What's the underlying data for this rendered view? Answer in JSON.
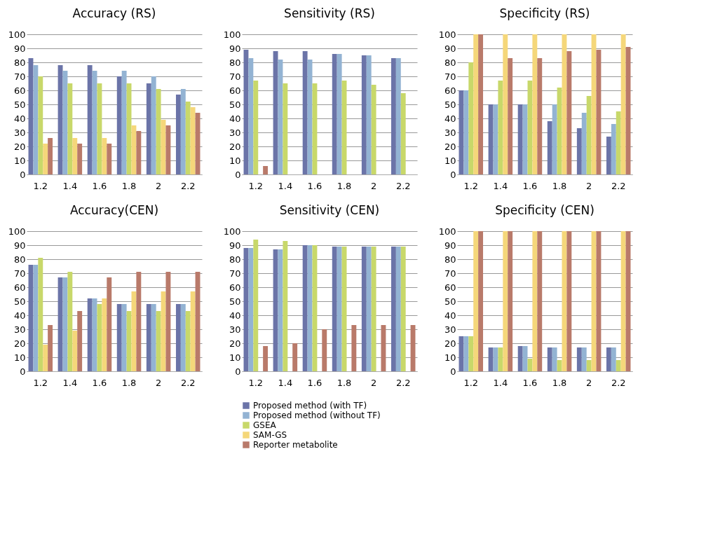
{
  "chart_data": [
    {
      "type": "bar",
      "title": "Accuracy (RS)",
      "categories": [
        "1.2",
        "1.4",
        "1.6",
        "1.8",
        "2",
        "2.2"
      ],
      "ylim": [
        0,
        100
      ],
      "yticks": [
        0,
        10,
        20,
        30,
        40,
        50,
        60,
        70,
        80,
        90,
        100
      ],
      "grid": "y",
      "series": [
        {
          "color": "#6b74a8",
          "values": [
            83,
            78,
            78,
            70,
            65,
            57
          ]
        },
        {
          "color": "#93b3d3",
          "values": [
            78,
            74,
            74,
            74,
            70,
            61
          ]
        },
        {
          "color": "#c8d86a",
          "values": [
            70,
            65,
            65,
            65,
            61,
            52
          ]
        },
        {
          "color": "#f5d77a",
          "values": [
            22,
            26,
            26,
            35,
            39,
            48
          ]
        },
        {
          "color": "#b97a6a",
          "values": [
            26,
            22,
            22,
            31,
            35,
            44
          ]
        }
      ]
    },
    {
      "type": "bar",
      "title": "Sensitivity (RS)",
      "categories": [
        "1.2",
        "1.4",
        "1.6",
        "1.8",
        "2",
        "2.2"
      ],
      "ylim": [
        0,
        100
      ],
      "yticks": [
        0,
        10,
        20,
        30,
        40,
        50,
        60,
        70,
        80,
        90,
        100
      ],
      "grid": "y",
      "series": [
        {
          "color": "#6b74a8",
          "values": [
            89,
            88,
            88,
            86,
            85,
            83
          ]
        },
        {
          "color": "#93b3d3",
          "values": [
            83,
            82,
            82,
            86,
            85,
            83
          ]
        },
        {
          "color": "#c8d86a",
          "values": [
            67,
            65,
            65,
            67,
            64,
            58
          ]
        },
        {
          "color": "#f5d77a",
          "values": [
            0,
            0,
            0,
            0,
            0,
            0
          ]
        },
        {
          "color": "#b97a6a",
          "values": [
            6,
            0,
            0,
            0,
            0,
            0
          ]
        }
      ]
    },
    {
      "type": "bar",
      "title": "Specificity (RS)",
      "categories": [
        "1.2",
        "1.4",
        "1.6",
        "1.8",
        "2",
        "2.2"
      ],
      "ylim": [
        0,
        100
      ],
      "yticks": [
        0,
        10,
        20,
        30,
        40,
        50,
        60,
        70,
        80,
        90,
        100
      ],
      "grid": "y",
      "series": [
        {
          "color": "#6b74a8",
          "values": [
            60,
            50,
            50,
            38,
            33,
            27
          ]
        },
        {
          "color": "#93b3d3",
          "values": [
            60,
            50,
            50,
            50,
            44,
            36
          ]
        },
        {
          "color": "#c8d86a",
          "values": [
            80,
            67,
            67,
            62,
            56,
            45
          ]
        },
        {
          "color": "#f5d77a",
          "values": [
            100,
            100,
            100,
            100,
            100,
            100
          ]
        },
        {
          "color": "#b97a6a",
          "values": [
            100,
            83,
            83,
            88,
            89,
            91
          ]
        }
      ]
    },
    {
      "type": "bar",
      "title": "Accuracy(CEN)",
      "categories": [
        "1.2",
        "1.4",
        "1.6",
        "1.8",
        "2",
        "2.2"
      ],
      "ylim": [
        0,
        100
      ],
      "yticks": [
        0,
        10,
        20,
        30,
        40,
        50,
        60,
        70,
        80,
        90,
        100
      ],
      "grid": "y",
      "series": [
        {
          "color": "#6b74a8",
          "values": [
            76,
            67,
            52,
            48,
            48,
            48
          ]
        },
        {
          "color": "#93b3d3",
          "values": [
            76,
            67,
            52,
            48,
            48,
            48
          ]
        },
        {
          "color": "#c8d86a",
          "values": [
            81,
            71,
            48,
            43,
            43,
            43
          ]
        },
        {
          "color": "#f5d77a",
          "values": [
            19,
            29,
            52,
            57,
            57,
            57
          ]
        },
        {
          "color": "#b97a6a",
          "values": [
            33,
            43,
            67,
            71,
            71,
            71
          ]
        }
      ]
    },
    {
      "type": "bar",
      "title": "Sensitivity (CEN)",
      "categories": [
        "1.2",
        "1.4",
        "1.6",
        "1.8",
        "2",
        "2.2"
      ],
      "ylim": [
        0,
        100
      ],
      "yticks": [
        0,
        10,
        20,
        30,
        40,
        50,
        60,
        70,
        80,
        90,
        100
      ],
      "grid": "y",
      "legend": "bottom",
      "series": [
        {
          "name": "Proposed method (with TF)",
          "color": "#6b74a8",
          "values": [
            88,
            87,
            90,
            89,
            89,
            89
          ]
        },
        {
          "name": "Proposed method (without TF)",
          "color": "#93b3d3",
          "values": [
            88,
            87,
            90,
            89,
            89,
            89
          ]
        },
        {
          "name": "GSEA",
          "color": "#c8d86a",
          "values": [
            94,
            93,
            90,
            89,
            89,
            89
          ]
        },
        {
          "name": "SAM-GS",
          "color": "#f5d77a",
          "values": [
            0,
            0,
            0,
            0,
            0,
            0
          ]
        },
        {
          "name": "Reporter metabolite",
          "color": "#b97a6a",
          "values": [
            18,
            20,
            30,
            33,
            33,
            33
          ]
        }
      ]
    },
    {
      "type": "bar",
      "title": "Specificity (CEN)",
      "categories": [
        "1.2",
        "1.4",
        "1.6",
        "1.8",
        "2",
        "2.2"
      ],
      "ylim": [
        0,
        100
      ],
      "yticks": [
        0,
        10,
        20,
        30,
        40,
        50,
        60,
        70,
        80,
        90,
        100
      ],
      "grid": "y",
      "series": [
        {
          "color": "#6b74a8",
          "values": [
            25,
            17,
            18,
            17,
            17,
            17
          ]
        },
        {
          "color": "#93b3d3",
          "values": [
            25,
            17,
            18,
            17,
            17,
            17
          ]
        },
        {
          "color": "#c8d86a",
          "values": [
            25,
            17,
            9,
            8,
            8,
            8
          ]
        },
        {
          "color": "#f5d77a",
          "values": [
            100,
            100,
            100,
            100,
            100,
            100
          ]
        },
        {
          "color": "#b97a6a",
          "values": [
            100,
            100,
            100,
            100,
            100,
            100
          ]
        }
      ]
    }
  ]
}
